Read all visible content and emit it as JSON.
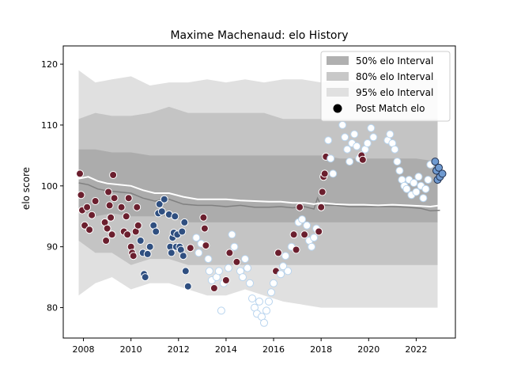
{
  "chart_data": {
    "type": "scatter",
    "title": "Maxime Machenaud: elo History",
    "xlabel": "",
    "ylabel": "elo score",
    "xlim": [
      2007.15,
      2023.65
    ],
    "ylim": [
      75,
      123
    ],
    "x_ticks": [
      2008,
      2010,
      2012,
      2014,
      2016,
      2018,
      2020,
      2022
    ],
    "y_ticks": [
      80,
      90,
      100,
      110,
      120
    ],
    "grid": false,
    "legend_position": "top-right",
    "legend": [
      {
        "label": "50% elo Interval",
        "kind": "patch",
        "color": "#b0b0b0"
      },
      {
        "label": "80% elo Interval",
        "kind": "patch",
        "color": "#c8c8c8"
      },
      {
        "label": "95% elo Interval",
        "kind": "patch",
        "color": "#e0e0e0"
      },
      {
        "label": "Post Match elo",
        "kind": "marker",
        "color": "#000000"
      }
    ],
    "bands": {
      "x": [
        2007.8,
        2008.5,
        2009.2,
        2010.0,
        2010.8,
        2011.6,
        2012.4,
        2013.2,
        2014.0,
        2014.8,
        2015.6,
        2016.4,
        2017.2,
        2018.0,
        2018.8,
        2019.6,
        2020.4,
        2021.2,
        2022.0,
        2022.9
      ],
      "p50_low": [
        96,
        95,
        95.5,
        95,
        95,
        95,
        94,
        94,
        94,
        94,
        94,
        94,
        94,
        94,
        94,
        94,
        94,
        94,
        94,
        94
      ],
      "p50_high": [
        106,
        106,
        105.5,
        105.5,
        105,
        105,
        105,
        105,
        105,
        105,
        105,
        105,
        105,
        105,
        104.5,
        104.5,
        104.5,
        104.5,
        104.5,
        104
      ],
      "p80_low": [
        91,
        89,
        89,
        87,
        88,
        88,
        87,
        87,
        87,
        87,
        87,
        87,
        87,
        87,
        87,
        87,
        87,
        87,
        87,
        87
      ],
      "p80_high": [
        111,
        112,
        111.5,
        111.5,
        112,
        113,
        112,
        112,
        112,
        112,
        112,
        111,
        111,
        111,
        111,
        111,
        111,
        111,
        111,
        111
      ],
      "p95_low": [
        82,
        84,
        85,
        83,
        84,
        84,
        83,
        82,
        82,
        83,
        82,
        81,
        80.5,
        80,
        80,
        80,
        80,
        80,
        80,
        80
      ],
      "p95_high": [
        119,
        117,
        117.5,
        118,
        116.5,
        117,
        117,
        117.5,
        117,
        117.5,
        117,
        117.5,
        117.5,
        117,
        117.5,
        117,
        118,
        118,
        118,
        117.5
      ],
      "band_color": "#000000"
    },
    "series": [
      {
        "line_type": "median",
        "line_color": "#808080",
        "x": [
          2007.8,
          2008.2,
          2008.6,
          2009.0,
          2009.5,
          2010.0,
          2010.5,
          2011.0,
          2011.6,
          2012.2,
          2012.8,
          2013.4,
          2014.0,
          2014.6,
          2015.2,
          2015.8,
          2016.3,
          2016.8,
          2017.3,
          2017.7,
          2017.85,
          2018.0,
          2018.6,
          2019.2,
          2019.8,
          2020.4,
          2021.0,
          2021.6,
          2022.2,
          2022.6,
          2023.0
        ],
        "y": [
          100.5,
          100.2,
          99.5,
          99.2,
          99.0,
          98.8,
          98.0,
          97.5,
          97.8,
          97.0,
          96.8,
          96.8,
          96.6,
          96.8,
          96.5,
          96.5,
          96.6,
          96.4,
          96.6,
          96.2,
          98.0,
          96.8,
          96.8,
          96.6,
          96.6,
          96.6,
          96.6,
          96.5,
          96.3,
          95.9,
          96.0
        ]
      },
      {
        "line_type": "mean",
        "line_color": "#ffffff",
        "x": [
          2007.8,
          2008.2,
          2008.6,
          2009.0,
          2009.5,
          2010.0,
          2010.5,
          2011.0,
          2011.6,
          2012.2,
          2012.8,
          2013.4,
          2014.0,
          2014.6,
          2015.2,
          2015.8,
          2016.3,
          2016.8,
          2017.3,
          2017.7,
          2018.0,
          2018.6,
          2019.2,
          2019.8,
          2020.4,
          2021.0,
          2021.6,
          2022.2,
          2022.6,
          2023.0
        ],
        "y": [
          101.2,
          101.5,
          100.8,
          100.4,
          100.2,
          100.0,
          99.3,
          98.8,
          98.8,
          98.2,
          97.8,
          97.8,
          97.8,
          97.6,
          97.5,
          97.4,
          97.4,
          97.2,
          97.2,
          97.0,
          97.2,
          97.0,
          96.9,
          96.9,
          96.8,
          96.9,
          96.8,
          96.7,
          96.6,
          96.8
        ]
      },
      {
        "name": "Post Match elo",
        "points": [
          [
            2007.85,
            102.0,
            "maroon"
          ],
          [
            2007.9,
            98.5,
            "maroon"
          ],
          [
            2007.95,
            96.0,
            "maroon"
          ],
          [
            2008.05,
            93.5,
            "maroon"
          ],
          [
            2008.15,
            96.5,
            "maroon"
          ],
          [
            2008.25,
            92.8,
            "maroon"
          ],
          [
            2008.35,
            95.2,
            "maroon"
          ],
          [
            2008.5,
            97.5,
            "maroon"
          ],
          [
            2008.9,
            94.0,
            "maroon"
          ],
          [
            2008.95,
            91.0,
            "maroon"
          ],
          [
            2009.0,
            93.0,
            "maroon"
          ],
          [
            2009.05,
            99.0,
            "maroon"
          ],
          [
            2009.1,
            96.8,
            "maroon"
          ],
          [
            2009.15,
            94.8,
            "maroon"
          ],
          [
            2009.2,
            92.0,
            "maroon"
          ],
          [
            2009.25,
            101.8,
            "maroon"
          ],
          [
            2009.3,
            98.0,
            "maroon"
          ],
          [
            2009.6,
            96.5,
            "maroon"
          ],
          [
            2009.7,
            92.5,
            "maroon"
          ],
          [
            2009.8,
            95.0,
            "maroon"
          ],
          [
            2009.85,
            92.0,
            "maroon"
          ],
          [
            2009.9,
            98.0,
            "maroon"
          ],
          [
            2010.0,
            90.0,
            "maroon"
          ],
          [
            2010.05,
            89.0,
            "maroon"
          ],
          [
            2010.1,
            88.5,
            "maroon"
          ],
          [
            2010.2,
            92.5,
            "maroon"
          ],
          [
            2010.25,
            96.5,
            "maroon"
          ],
          [
            2010.3,
            93.5,
            "maroon"
          ],
          [
            2010.4,
            91.0,
            "navy"
          ],
          [
            2010.5,
            89.0,
            "navy"
          ],
          [
            2010.55,
            85.5,
            "navy"
          ],
          [
            2010.6,
            85.0,
            "navy"
          ],
          [
            2010.7,
            88.8,
            "navy"
          ],
          [
            2010.8,
            90.0,
            "navy"
          ],
          [
            2010.95,
            93.5,
            "navy"
          ],
          [
            2011.05,
            92.5,
            "navy"
          ],
          [
            2011.15,
            95.5,
            "navy"
          ],
          [
            2011.2,
            97.0,
            "navy"
          ],
          [
            2011.3,
            95.8,
            "navy"
          ],
          [
            2011.4,
            97.8,
            "navy"
          ],
          [
            2011.6,
            95.3,
            "navy"
          ],
          [
            2011.65,
            90.0,
            "navy"
          ],
          [
            2011.7,
            89.0,
            "navy"
          ],
          [
            2011.75,
            91.5,
            "navy"
          ],
          [
            2011.8,
            92.3,
            "navy"
          ],
          [
            2011.85,
            95.0,
            "navy"
          ],
          [
            2011.9,
            90.0,
            "navy"
          ],
          [
            2011.95,
            92.0,
            "navy"
          ],
          [
            2012.05,
            90.0,
            "navy"
          ],
          [
            2012.1,
            89.5,
            "navy"
          ],
          [
            2012.15,
            92.5,
            "navy"
          ],
          [
            2012.2,
            88.5,
            "navy"
          ],
          [
            2012.25,
            94.0,
            "navy"
          ],
          [
            2012.3,
            86.0,
            "navy"
          ],
          [
            2012.4,
            83.5,
            "navy"
          ],
          [
            2012.5,
            89.8,
            "maroon"
          ],
          [
            2012.75,
            91.5,
            "ice"
          ],
          [
            2012.85,
            89.0,
            "ice"
          ],
          [
            2012.95,
            90.5,
            "ice"
          ],
          [
            2013.05,
            94.8,
            "maroon"
          ],
          [
            2013.1,
            93.0,
            "maroon"
          ],
          [
            2013.15,
            90.2,
            "maroon"
          ],
          [
            2013.25,
            88.0,
            "ice"
          ],
          [
            2013.3,
            86.0,
            "ice"
          ],
          [
            2013.4,
            84.5,
            "ice"
          ],
          [
            2013.5,
            83.2,
            "maroon"
          ],
          [
            2013.6,
            85.0,
            "ice"
          ],
          [
            2013.7,
            86.0,
            "ice"
          ],
          [
            2013.8,
            79.5,
            "ice"
          ],
          [
            2013.9,
            84.0,
            "ice"
          ],
          [
            2014.0,
            84.5,
            "maroon"
          ],
          [
            2014.1,
            86.5,
            "ice"
          ],
          [
            2014.15,
            89.0,
            "maroon"
          ],
          [
            2014.25,
            92.0,
            "ice"
          ],
          [
            2014.35,
            90.0,
            "ice"
          ],
          [
            2014.45,
            87.5,
            "maroon"
          ],
          [
            2014.6,
            86.0,
            "ice"
          ],
          [
            2014.7,
            85.0,
            "ice"
          ],
          [
            2014.8,
            88.0,
            "ice"
          ],
          [
            2014.9,
            86.5,
            "ice"
          ],
          [
            2015.0,
            84.0,
            "ice"
          ],
          [
            2015.1,
            81.5,
            "ice"
          ],
          [
            2015.2,
            80.0,
            "ice"
          ],
          [
            2015.3,
            79.0,
            "ice"
          ],
          [
            2015.4,
            81.0,
            "ice"
          ],
          [
            2015.5,
            78.5,
            "ice"
          ],
          [
            2015.6,
            77.5,
            "ice"
          ],
          [
            2015.7,
            79.5,
            "ice"
          ],
          [
            2015.8,
            81.0,
            "ice"
          ],
          [
            2015.9,
            82.5,
            "ice"
          ],
          [
            2016.0,
            84.0,
            "ice"
          ],
          [
            2016.1,
            86.0,
            "maroon"
          ],
          [
            2016.2,
            89.0,
            "maroon"
          ],
          [
            2016.3,
            85.5,
            "ice"
          ],
          [
            2016.4,
            86.8,
            "ice"
          ],
          [
            2016.5,
            88.5,
            "ice"
          ],
          [
            2016.6,
            86.0,
            "ice"
          ],
          [
            2016.75,
            90.0,
            "ice"
          ],
          [
            2016.85,
            92.0,
            "maroon"
          ],
          [
            2016.95,
            89.5,
            "maroon"
          ],
          [
            2017.05,
            94.0,
            "ice"
          ],
          [
            2017.1,
            96.5,
            "maroon"
          ],
          [
            2017.2,
            94.5,
            "ice"
          ],
          [
            2017.3,
            92.0,
            "maroon"
          ],
          [
            2017.4,
            93.5,
            "ice"
          ],
          [
            2017.5,
            91.0,
            "ice"
          ],
          [
            2017.6,
            90.0,
            "ice"
          ],
          [
            2017.7,
            91.5,
            "ice"
          ],
          [
            2017.8,
            93.0,
            "ice"
          ],
          [
            2017.9,
            92.5,
            "maroon"
          ],
          [
            2018.0,
            96.5,
            "maroon"
          ],
          [
            2018.05,
            99.0,
            "maroon"
          ],
          [
            2018.1,
            101.5,
            "maroon"
          ],
          [
            2018.15,
            102.0,
            "maroon"
          ],
          [
            2018.2,
            104.8,
            "maroon"
          ],
          [
            2018.3,
            107.5,
            "ice"
          ],
          [
            2018.4,
            104.5,
            "ice"
          ],
          [
            2018.5,
            102.0,
            "ice"
          ],
          [
            2018.9,
            110.0,
            "ice"
          ],
          [
            2019.0,
            108.0,
            "ice"
          ],
          [
            2019.1,
            106.0,
            "ice"
          ],
          [
            2019.2,
            104.0,
            "ice"
          ],
          [
            2019.3,
            107.0,
            "ice"
          ],
          [
            2019.4,
            108.5,
            "ice"
          ],
          [
            2019.5,
            106.5,
            "ice"
          ],
          [
            2019.6,
            104.5,
            "ice"
          ],
          [
            2019.7,
            105.0,
            "maroon"
          ],
          [
            2019.75,
            104.3,
            "maroon"
          ],
          [
            2019.85,
            106.0,
            "ice"
          ],
          [
            2019.95,
            107.0,
            "ice"
          ],
          [
            2020.1,
            109.5,
            "ice"
          ],
          [
            2020.2,
            108.0,
            "ice"
          ],
          [
            2020.8,
            107.5,
            "ice"
          ],
          [
            2020.9,
            108.5,
            "ice"
          ],
          [
            2021.0,
            107.0,
            "ice"
          ],
          [
            2021.1,
            106.0,
            "ice"
          ],
          [
            2021.2,
            104.0,
            "ice"
          ],
          [
            2021.3,
            102.5,
            "ice"
          ],
          [
            2021.4,
            101.0,
            "ice"
          ],
          [
            2021.5,
            100.0,
            "ice"
          ],
          [
            2021.6,
            99.5,
            "ice"
          ],
          [
            2021.7,
            101.0,
            "ice"
          ],
          [
            2021.8,
            98.5,
            "ice"
          ],
          [
            2021.9,
            100.5,
            "ice"
          ],
          [
            2022.0,
            99.0,
            "ice"
          ],
          [
            2022.1,
            101.5,
            "ice"
          ],
          [
            2022.2,
            100.0,
            "ice"
          ],
          [
            2022.3,
            98.0,
            "ice"
          ],
          [
            2022.4,
            99.5,
            "ice"
          ],
          [
            2022.5,
            101.0,
            "ice"
          ],
          [
            2022.6,
            103.5,
            "ice"
          ],
          [
            2022.8,
            104.0,
            "steel"
          ],
          [
            2022.85,
            102.5,
            "steel"
          ],
          [
            2022.9,
            101.0,
            "steel"
          ],
          [
            2022.95,
            103.0,
            "steel"
          ],
          [
            2023.0,
            101.5,
            "steel"
          ],
          [
            2023.1,
            102.0,
            "steel"
          ]
        ]
      }
    ],
    "marker_styles": {
      "maroon": {
        "fill": "#6b1f2e",
        "stroke": "#ffffff"
      },
      "navy": {
        "fill": "#2f4f80",
        "stroke": "#ffffff"
      },
      "ice": {
        "fill": "#ffffff",
        "stroke": "#b8d4ee"
      },
      "steel": {
        "fill": "#6f9ad0",
        "stroke": "#1f2f4f"
      }
    }
  }
}
